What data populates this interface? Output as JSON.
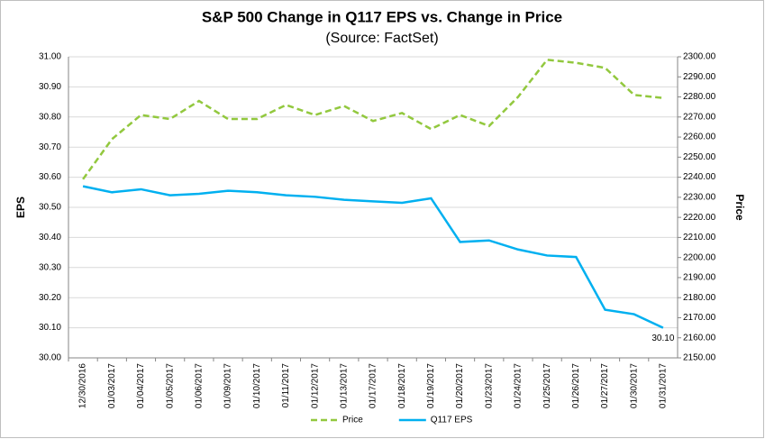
{
  "chart_data": {
    "type": "line",
    "title": "S&P 500 Change in Q117 EPS vs. Change in Price",
    "subtitle": "(Source: FactSet)",
    "y_label": "EPS",
    "y2_label": "Price",
    "categories": [
      "12/30/2016",
      "01/03/2017",
      "01/04/2017",
      "01/05/2017",
      "01/06/2017",
      "01/09/2017",
      "01/10/2017",
      "01/11/2017",
      "01/12/2017",
      "01/13/2017",
      "01/17/2017",
      "01/18/2017",
      "01/19/2017",
      "01/20/2017",
      "01/23/2017",
      "01/24/2017",
      "01/25/2017",
      "01/26/2017",
      "01/27/2017",
      "01/30/2017",
      "01/31/2017"
    ],
    "series": [
      {
        "name": "Price",
        "color": "#92c83e",
        "dashed": true,
        "axis": "y2",
        "values": [
          2239,
          2259,
          2271,
          2269,
          2278,
          2269,
          2269,
          2276,
          2271,
          2275.5,
          2268,
          2272,
          2264,
          2271,
          2265.5,
          2280,
          2298.5,
          2297,
          2294.5,
          2281,
          2279.5
        ]
      },
      {
        "name": "Q117 EPS",
        "color": "#00b0f0",
        "dashed": false,
        "values": [
          30.57,
          30.55,
          30.56,
          30.54,
          30.545,
          30.555,
          30.55,
          30.54,
          30.535,
          30.525,
          30.52,
          30.515,
          30.53,
          30.385,
          30.39,
          30.36,
          30.34,
          30.335,
          30.16,
          30.145,
          30.1
        ],
        "value_labels": [
          null,
          null,
          null,
          null,
          null,
          null,
          null,
          null,
          null,
          null,
          null,
          null,
          null,
          null,
          null,
          null,
          null,
          null,
          null,
          null,
          "30.10"
        ]
      }
    ],
    "ylim": [
      30.0,
      31.0
    ],
    "yticks": [
      {
        "value": 30.0,
        "label": "30.00"
      },
      {
        "value": 30.1,
        "label": "30.10"
      },
      {
        "value": 30.2,
        "label": "30.20"
      },
      {
        "value": 30.3,
        "label": "30.30"
      },
      {
        "value": 30.4,
        "label": "30.40"
      },
      {
        "value": 30.5,
        "label": "30.50"
      },
      {
        "value": 30.6,
        "label": "30.60"
      },
      {
        "value": 30.7,
        "label": "30.70"
      },
      {
        "value": 30.8,
        "label": "30.80"
      },
      {
        "value": 30.9,
        "label": "30.90"
      },
      {
        "value": 31.0,
        "label": "31.00"
      }
    ],
    "y2lim": [
      2150,
      2300
    ],
    "y2ticks": [
      {
        "value": 2150,
        "label": "2150.00"
      },
      {
        "value": 2160,
        "label": "2160.00"
      },
      {
        "value": 2170,
        "label": "2170.00"
      },
      {
        "value": 2180,
        "label": "2180.00"
      },
      {
        "value": 2190,
        "label": "2190.00"
      },
      {
        "value": 2200,
        "label": "2200.00"
      },
      {
        "value": 2210,
        "label": "2210.00"
      },
      {
        "value": 2220,
        "label": "2220.00"
      },
      {
        "value": 2230,
        "label": "2230.00"
      },
      {
        "value": 2240,
        "label": "2240.00"
      },
      {
        "value": 2250,
        "label": "2250.00"
      },
      {
        "value": 2260,
        "label": "2260.00"
      },
      {
        "value": 2270,
        "label": "2270.00"
      },
      {
        "value": 2280,
        "label": "2280.00"
      },
      {
        "value": 2290,
        "label": "2290.00"
      },
      {
        "value": 2300,
        "label": "2300.00"
      }
    ],
    "grid": true,
    "legend": "bottom"
  }
}
